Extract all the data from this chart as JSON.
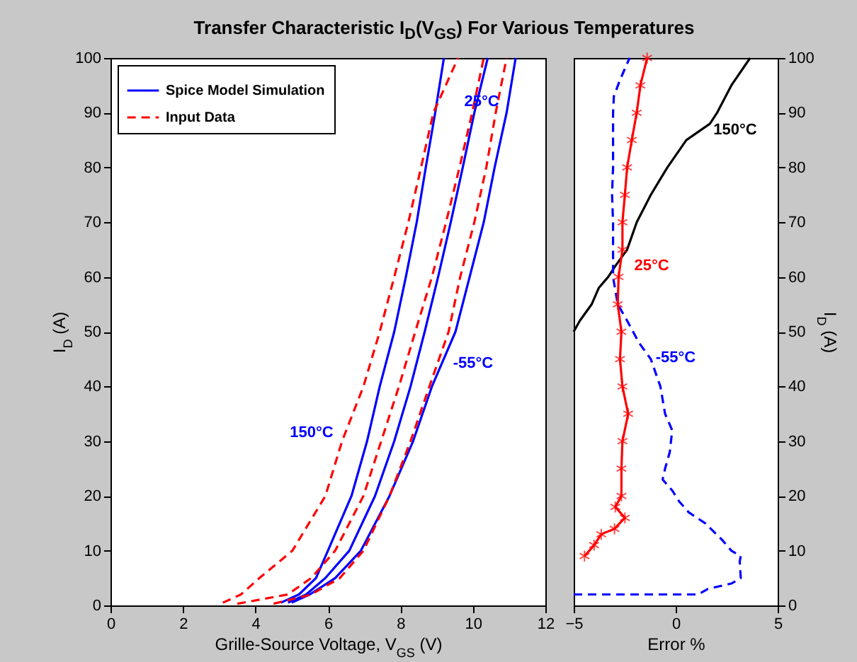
{
  "chart_data": [
    {
      "type": "line",
      "title": "Transfer Characteristic I$_{D}$(V$_{GS}$) For Various Temperatures",
      "xlabel": "Grille-Source Voltage, V$_{GS}$ (V)",
      "ylabel": "I$_{D}$ (A)",
      "xlim": [
        0,
        12
      ],
      "xticks": [
        0,
        2,
        4,
        6,
        8,
        10,
        12
      ],
      "ylim": [
        0,
        100
      ],
      "yticks": [
        0,
        10,
        20,
        30,
        40,
        50,
        60,
        70,
        80,
        90,
        100
      ],
      "grid": false,
      "legend": "top left",
      "series": [
        {
          "name": "Spice Model Simulation",
          "color": "#0000ff",
          "line_style": "solid",
          "x": [
            4.7,
            5.2,
            5.67,
            6.0,
            6.65,
            7.08,
            7.43,
            7.83,
            8.15,
            8.45,
            8.7,
            8.96,
            9.2
          ],
          "values": [
            0.5,
            2,
            5,
            10,
            20,
            30,
            40,
            50,
            60,
            70,
            80,
            90,
            100
          ]
        },
        {
          "name": "Input Data",
          "color": "#ff0000",
          "line_style": "dashed",
          "x": [
            3.1,
            3.6,
            4.11,
            5.02,
            5.93,
            6.39,
            6.98,
            7.43,
            7.83,
            8.22,
            8.57,
            8.91,
            9.59
          ],
          "values": [
            0.5,
            2,
            5,
            10,
            20,
            30,
            40,
            50,
            60,
            70,
            80,
            90,
            100
          ]
        },
        {
          "color": "#0000ff",
          "line_style": "solid",
          "x": [
            4.9,
            5.4,
            5.93,
            6.59,
            7.3,
            7.83,
            8.28,
            8.67,
            9.04,
            9.39,
            9.72,
            10.04,
            10.41
          ],
          "values": [
            0.5,
            2,
            5,
            10,
            20,
            30,
            40,
            50,
            60,
            70,
            80,
            90,
            100
          ]
        },
        {
          "color": "#ff0000",
          "line_style": "dashed",
          "x": [
            3.5,
            4.89,
            5.54,
            6.2,
            6.98,
            7.47,
            7.96,
            8.41,
            8.87,
            9.26,
            9.63,
            9.98,
            10.3
          ],
          "values": [
            0.3,
            2,
            5,
            10,
            20,
            30,
            40,
            50,
            60,
            70,
            80,
            90,
            100
          ]
        },
        {
          "color": "#0000ff",
          "line_style": "solid",
          "x": [
            5.0,
            5.5,
            6.2,
            6.91,
            7.7,
            8.35,
            8.87,
            9.52,
            9.91,
            10.3,
            10.6,
            10.93,
            11.18
          ],
          "values": [
            0.5,
            2,
            5,
            10,
            20,
            30,
            40,
            50,
            60,
            70,
            80,
            90,
            100
          ]
        },
        {
          "color": "#ff0000",
          "line_style": "dashed",
          "x": [
            4.5,
            5.54,
            6.33,
            6.98,
            7.7,
            8.28,
            8.8,
            9.33,
            9.65,
            10.04,
            10.37,
            10.63,
            10.93
          ],
          "values": [
            0.3,
            2,
            5,
            10,
            20,
            30,
            40,
            50,
            60,
            70,
            80,
            90,
            100
          ]
        }
      ],
      "annotations": [
        "25°C",
        "-55°C",
        "150°C"
      ]
    },
    {
      "type": "line",
      "xlabel": "Error %",
      "y2label": "I$_{D}$ (A)",
      "xlim": [
        -5,
        5
      ],
      "xticks": [
        -5,
        0,
        5
      ],
      "y2lim": [
        0,
        100
      ],
      "y2ticks": [
        0,
        10,
        20,
        30,
        40,
        50,
        60,
        70,
        80,
        90,
        100
      ],
      "grid": false,
      "series": [
        {
          "name": "150°C",
          "color": "#000000",
          "line_style": "solid",
          "axis": "y2",
          "x": [
            -5,
            -4.7,
            -4.12,
            -3.77,
            -3.31,
            -2.96,
            -2.38,
            -1.91,
            -1.22,
            -0.41,
            0.52,
            1.68,
            2.03,
            2.73,
            3.65
          ],
          "values": [
            50,
            52,
            55,
            58,
            60,
            62,
            65,
            70,
            75,
            80,
            85,
            88,
            90,
            95,
            100
          ]
        },
        {
          "name": "-55°C",
          "color": "#0000ff",
          "line_style": "dashed",
          "axis": "y2",
          "x": [
            -5,
            1.1,
            1.57,
            2.73,
            3.19,
            3.14,
            3.19,
            2.73,
            2.27,
            1.45,
            0.64,
            0.17,
            -0.17,
            -0.64,
            -0.52,
            -0.29,
            -0.17,
            -0.52,
            -0.75,
            -1.22,
            -1.8,
            -2.38,
            -2.84,
            -3.07,
            -3.07,
            -3.07,
            -3.12,
            -3.07,
            -3.07,
            -3.07,
            -3.03,
            -2.73,
            -2.26
          ],
          "values": [
            2,
            2,
            3,
            4,
            5,
            8,
            9,
            10,
            12,
            15,
            17,
            19,
            21,
            23,
            25,
            28,
            32,
            35,
            40,
            45,
            48,
            52,
            55,
            60,
            65,
            70,
            75,
            80,
            85,
            90,
            93,
            96,
            100
          ]
        },
        {
          "name": "25°C",
          "color": "#ff0000",
          "line_style": "solid",
          "marker": "cross",
          "axis": "y2",
          "x": [
            -4.47,
            -4.0,
            -3.65,
            -3.0,
            -2.49,
            -2.96,
            -2.66,
            -2.66,
            -2.61,
            -2.33,
            -2.61,
            -2.73,
            -2.66,
            -2.84,
            -2.8,
            -2.61,
            -2.61,
            -2.49,
            -2.38,
            -2.15,
            -1.91,
            -1.73,
            -1.4
          ],
          "values": [
            9,
            11,
            13,
            14,
            16,
            18,
            20,
            25,
            30,
            35,
            40,
            45,
            50,
            55,
            60,
            65,
            70,
            75,
            80,
            85,
            90,
            95,
            100
          ]
        }
      ]
    }
  ]
}
